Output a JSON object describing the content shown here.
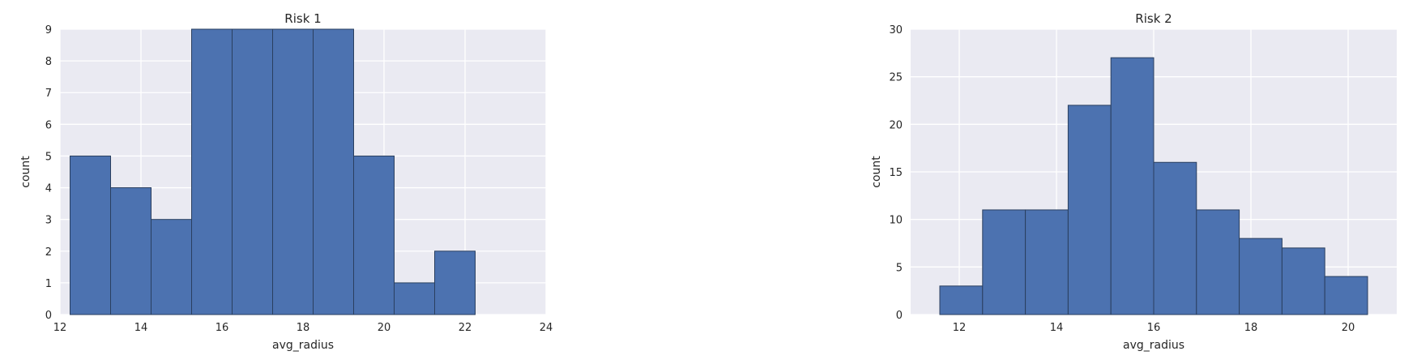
{
  "colors": {
    "plot_background": "#eaeaf2",
    "grid": "#ffffff",
    "bar_fill": "#4c72b0",
    "bar_edge": "#2a3f5f"
  },
  "chart_data": [
    {
      "type": "bar",
      "title": "Risk 1",
      "xlabel": "avg_radius",
      "ylabel": "count",
      "xlim": [
        12,
        24
      ],
      "ylim": [
        0,
        9
      ],
      "xticks": [
        12,
        14,
        16,
        18,
        20,
        22,
        24
      ],
      "xtick_labels": [
        "12",
        "14",
        "16",
        "18",
        "20",
        "22",
        "24"
      ],
      "yticks": [
        0,
        1,
        2,
        3,
        4,
        5,
        6,
        7,
        8,
        9
      ],
      "ytick_labels": [
        "0",
        "1",
        "2",
        "3",
        "4",
        "5",
        "6",
        "7",
        "8",
        "9"
      ],
      "grid": true,
      "bin_edges": [
        12.25,
        13.25,
        14.25,
        15.25,
        16.25,
        17.25,
        18.25,
        19.25,
        20.25,
        21.25,
        22.25
      ],
      "values": [
        5,
        4,
        3,
        9,
        9,
        9,
        9,
        5,
        1,
        2
      ]
    },
    {
      "type": "bar",
      "title": "Risk 2",
      "xlabel": "avg_radius",
      "ylabel": "count",
      "xlim": [
        11,
        21
      ],
      "ylim": [
        0,
        30
      ],
      "xticks": [
        12,
        14,
        16,
        18,
        20
      ],
      "xtick_labels": [
        "12",
        "14",
        "16",
        "18",
        "20"
      ],
      "yticks": [
        0,
        5,
        10,
        15,
        20,
        25,
        30
      ],
      "ytick_labels": [
        "0",
        "5",
        "10",
        "15",
        "20",
        "25",
        "30"
      ],
      "grid": true,
      "bin_edges": [
        11.6,
        12.48,
        13.36,
        14.24,
        15.12,
        16.0,
        16.88,
        17.76,
        18.64,
        19.52,
        20.4
      ],
      "values": [
        3,
        11,
        11,
        22,
        27,
        16,
        11,
        8,
        7,
        4
      ]
    }
  ]
}
